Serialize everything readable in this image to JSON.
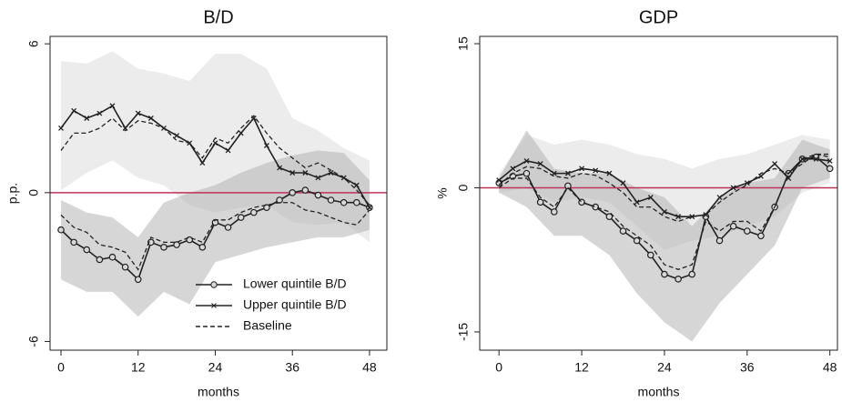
{
  "chart_data": [
    {
      "type": "line",
      "title": "B/D",
      "ylabel": "p.p.",
      "xlabel": "months",
      "xlim": [
        -1.7,
        50.7
      ],
      "ylim": [
        -6.35,
        6.3
      ],
      "xticks": [
        0,
        12,
        24,
        36,
        48
      ],
      "yticks": [
        -6,
        0,
        6
      ],
      "hline": 0,
      "hline_color": "#c0305a",
      "legend": "lower right",
      "x": [
        0,
        2,
        4,
        6,
        8,
        10,
        12,
        14,
        16,
        18,
        20,
        22,
        24,
        26,
        28,
        30,
        32,
        34,
        36,
        38,
        40,
        42,
        44,
        46,
        48
      ],
      "bands": [
        {
          "color": "#dcdcdc",
          "x": [
            0,
            4,
            8,
            12,
            16,
            20,
            24,
            28,
            32,
            36,
            40,
            44,
            48
          ],
          "upper": [
            5.3,
            5.2,
            5.7,
            5.0,
            4.8,
            4.5,
            5.6,
            5.6,
            5.0,
            3.0,
            2.5,
            1.8,
            1.3
          ],
          "lower": [
            0.1,
            0.8,
            1.3,
            0.6,
            0.3,
            -0.5,
            -0.8,
            -0.6,
            -0.5,
            -1.2,
            -1.3,
            -1.2,
            -2.0
          ]
        },
        {
          "color": "#b4b4b4",
          "x": [
            0,
            4,
            8,
            12,
            16,
            20,
            24,
            28,
            32,
            36,
            40,
            44,
            48
          ],
          "upper": [
            -0.3,
            -0.8,
            -1.0,
            -1.8,
            -0.4,
            0.0,
            0.3,
            0.8,
            1.2,
            1.5,
            1.7,
            1.6,
            0.5
          ],
          "lower": [
            -3.5,
            -4.0,
            -4.0,
            -5.0,
            -4.0,
            -4.5,
            -2.8,
            -2.5,
            -2.2,
            -2.0,
            -1.8,
            -1.8,
            -1.5
          ]
        }
      ],
      "series": [
        {
          "name": "Lower quintile B/D",
          "color": "#222222",
          "style": "circle",
          "values": [
            -1.5,
            -2.0,
            -2.3,
            -2.7,
            -2.6,
            -3.0,
            -3.5,
            -2.0,
            -2.2,
            -2.1,
            -1.9,
            -2.2,
            -1.2,
            -1.4,
            -1.0,
            -0.8,
            -0.6,
            -0.3,
            0.0,
            0.1,
            -0.1,
            -0.3,
            -0.4,
            -0.4,
            -0.6
          ]
        },
        {
          "name": "Upper quintile B/D",
          "color": "#222222",
          "style": "cross",
          "values": [
            2.6,
            3.3,
            3.0,
            3.2,
            3.5,
            2.6,
            3.2,
            3.0,
            2.6,
            2.3,
            2.0,
            1.2,
            2.0,
            1.7,
            2.4,
            3.0,
            1.9,
            1.0,
            0.8,
            0.8,
            0.6,
            0.8,
            0.6,
            0.3,
            -0.6
          ]
        },
        {
          "name": "Baseline",
          "color": "#222222",
          "style": "dash",
          "values": [
            1.7,
            2.4,
            2.4,
            2.6,
            3.0,
            2.5,
            2.9,
            2.8,
            2.6,
            2.1,
            2.0,
            1.4,
            2.2,
            2.0,
            2.6,
            3.1,
            2.4,
            1.8,
            1.4,
            1.0,
            1.2,
            0.9,
            0.6,
            0.1,
            -0.5
          ]
        },
        {
          "color": "#222222",
          "style": "dash",
          "values": [
            -0.9,
            -1.4,
            -1.6,
            -2.1,
            -2.2,
            -2.4,
            -3.1,
            -1.8,
            -2.0,
            -2.0,
            -1.8,
            -2.0,
            -1.1,
            -1.1,
            -0.8,
            -0.6,
            -0.5,
            -0.4,
            -0.4,
            -0.7,
            -0.8,
            -1.0,
            -1.2,
            -1.3,
            -0.7
          ]
        }
      ]
    },
    {
      "type": "line",
      "title": "GDP",
      "ylabel": "%",
      "xlabel": "months",
      "xlim": [
        -2.8,
        49.1
      ],
      "ylim": [
        -16.9,
        15.76
      ],
      "xticks": [
        0,
        12,
        24,
        36,
        48
      ],
      "yticks": [
        -15,
        0,
        15
      ],
      "hline": 0,
      "hline_color": "#c0305a",
      "x": [
        0,
        2,
        4,
        6,
        8,
        10,
        12,
        14,
        16,
        18,
        20,
        22,
        24,
        26,
        28,
        30,
        32,
        34,
        36,
        38,
        40,
        42,
        44,
        46,
        48
      ],
      "bands": [
        {
          "color": "#dcdcdc",
          "x": [
            0,
            4,
            8,
            12,
            16,
            20,
            24,
            28,
            32,
            36,
            40,
            44,
            48
          ],
          "upper": [
            1.5,
            5.5,
            4.5,
            5.0,
            4.5,
            3.5,
            3.0,
            2.0,
            3.0,
            3.5,
            4.5,
            5.5,
            5.0
          ],
          "lower": [
            -0.5,
            0.0,
            -1.5,
            -1.0,
            -1.5,
            -4.0,
            -6.5,
            -5.5,
            -5.0,
            -4.0,
            -3.0,
            -0.5,
            0.5
          ]
        },
        {
          "color": "#b4b4b4",
          "x": [
            0,
            4,
            8,
            12,
            16,
            20,
            24,
            28,
            32,
            36,
            40,
            44,
            48
          ],
          "upper": [
            1.0,
            6.0,
            2.0,
            1.5,
            1.5,
            0.0,
            -1.0,
            -4.0,
            -1.0,
            0.5,
            1.0,
            5.0,
            4.0
          ],
          "lower": [
            -0.5,
            -2.0,
            -5.0,
            -5.0,
            -7.0,
            -11.0,
            -14.0,
            -16.0,
            -12.0,
            -9.0,
            -6.0,
            0.0,
            1.0
          ]
        }
      ],
      "series": [
        {
          "color": "#222222",
          "style": "circle",
          "values": [
            0.5,
            1.2,
            1.5,
            -1.5,
            -2.5,
            0.2,
            -1.5,
            -2.0,
            -3.0,
            -4.5,
            -5.5,
            -7.0,
            -9.0,
            -9.5,
            -9.0,
            -3.0,
            -5.5,
            -4.0,
            -4.5,
            -5.0,
            -2.0,
            1.5,
            3.0,
            3.2,
            2.0
          ]
        },
        {
          "color": "#222222",
          "style": "cross",
          "values": [
            0.8,
            2.0,
            2.8,
            2.5,
            1.5,
            1.5,
            2.0,
            1.8,
            1.5,
            0.5,
            -1.5,
            -1.0,
            -2.5,
            -3.0,
            -3.0,
            -2.8,
            -1.0,
            0.0,
            0.5,
            1.2,
            2.5,
            1.0,
            3.0,
            3.0,
            2.8
          ]
        },
        {
          "color": "#222222",
          "style": "dash",
          "values": [
            0.3,
            1.5,
            2.2,
            2.0,
            1.2,
            1.0,
            1.5,
            1.3,
            0.5,
            -0.5,
            -2.0,
            -2.0,
            -3.0,
            -3.5,
            -3.0,
            -2.8,
            -1.5,
            -0.5,
            0.3,
            1.5,
            2.0,
            1.5,
            2.5,
            3.5,
            3.5
          ]
        },
        {
          "color": "#222222",
          "style": "dash",
          "values": [
            0.0,
            1.0,
            1.0,
            -1.0,
            -2.0,
            0.0,
            -1.5,
            -2.0,
            -2.5,
            -4.0,
            -5.0,
            -6.0,
            -8.0,
            -8.5,
            -8.0,
            -3.5,
            -4.5,
            -3.5,
            -3.5,
            -4.5,
            -2.0,
            1.5,
            3.0,
            3.5,
            3.2
          ]
        }
      ]
    }
  ]
}
